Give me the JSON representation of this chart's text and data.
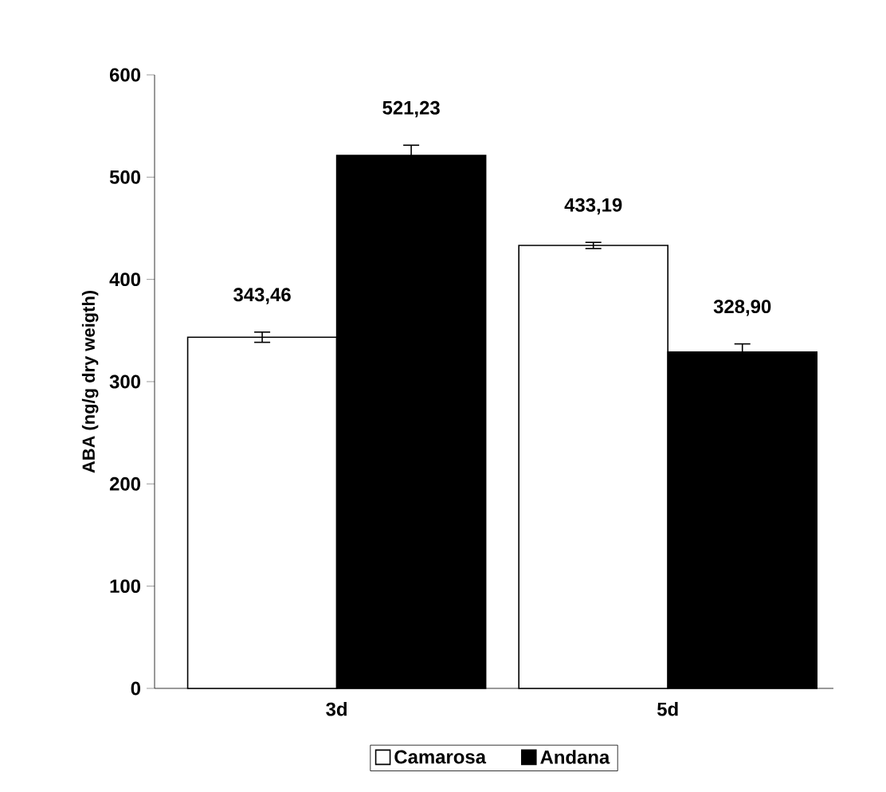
{
  "chart_data": {
    "type": "bar",
    "ylabel": "ABA (ng/g dry weigth)",
    "categories": [
      "3d",
      "5d"
    ],
    "series": [
      {
        "name": "Camarosa",
        "color": "#ffffff",
        "values": [
          343.46,
          433.19
        ],
        "errors": [
          5,
          3
        ],
        "value_labels": [
          "343,46",
          "433,19"
        ]
      },
      {
        "name": "Andana",
        "color": "#000000",
        "values": [
          521.23,
          328.9
        ],
        "errors": [
          10,
          8
        ],
        "value_labels": [
          "521,23",
          "328,90"
        ]
      }
    ],
    "ylim": [
      0,
      600
    ],
    "yticks": [
      0,
      100,
      200,
      300,
      400,
      500,
      600
    ],
    "legend": "bottom"
  }
}
